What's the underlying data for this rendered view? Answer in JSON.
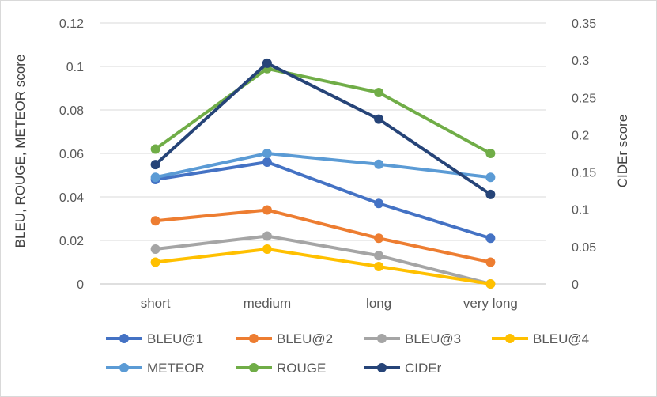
{
  "chart_data": {
    "type": "line",
    "categories": [
      "short",
      "medium",
      "long",
      "very long"
    ],
    "ylabel": "BLEU, ROUGE, METEOR score",
    "y2label": "CIDEr score",
    "ylim": [
      0,
      0.12
    ],
    "y2lim": [
      0,
      0.35
    ],
    "yticks": [
      "0",
      "0.02",
      "0.04",
      "0.06",
      "0.08",
      "0.1",
      "0.12"
    ],
    "y2ticks": [
      "0",
      "0.05",
      "0.1",
      "0.15",
      "0.2",
      "0.25",
      "0.3",
      "0.35"
    ],
    "grid": "horizontal",
    "legend": "bottom",
    "series": [
      {
        "name": "BLEU@1",
        "axis": "left",
        "color": "#4472c4",
        "values": [
          0.048,
          0.056,
          0.037,
          0.021
        ]
      },
      {
        "name": "BLEU@2",
        "axis": "left",
        "color": "#ed7d31",
        "values": [
          0.029,
          0.034,
          0.021,
          0.01
        ]
      },
      {
        "name": "BLEU@3",
        "axis": "left",
        "color": "#a5a5a5",
        "values": [
          0.016,
          0.022,
          0.013,
          0.0
        ]
      },
      {
        "name": "BLEU@4",
        "axis": "left",
        "color": "#ffc000",
        "values": [
          0.01,
          0.016,
          0.008,
          0.0
        ]
      },
      {
        "name": "METEOR",
        "axis": "left",
        "color": "#5b9bd5",
        "values": [
          0.049,
          0.06,
          0.055,
          0.049
        ]
      },
      {
        "name": "ROUGE",
        "axis": "left",
        "color": "#70ad47",
        "values": [
          0.062,
          0.099,
          0.088,
          0.06
        ]
      },
      {
        "name": "CIDEr",
        "axis": "right",
        "color": "#264478",
        "values": [
          0.16,
          0.296,
          0.221,
          0.12
        ]
      }
    ]
  }
}
